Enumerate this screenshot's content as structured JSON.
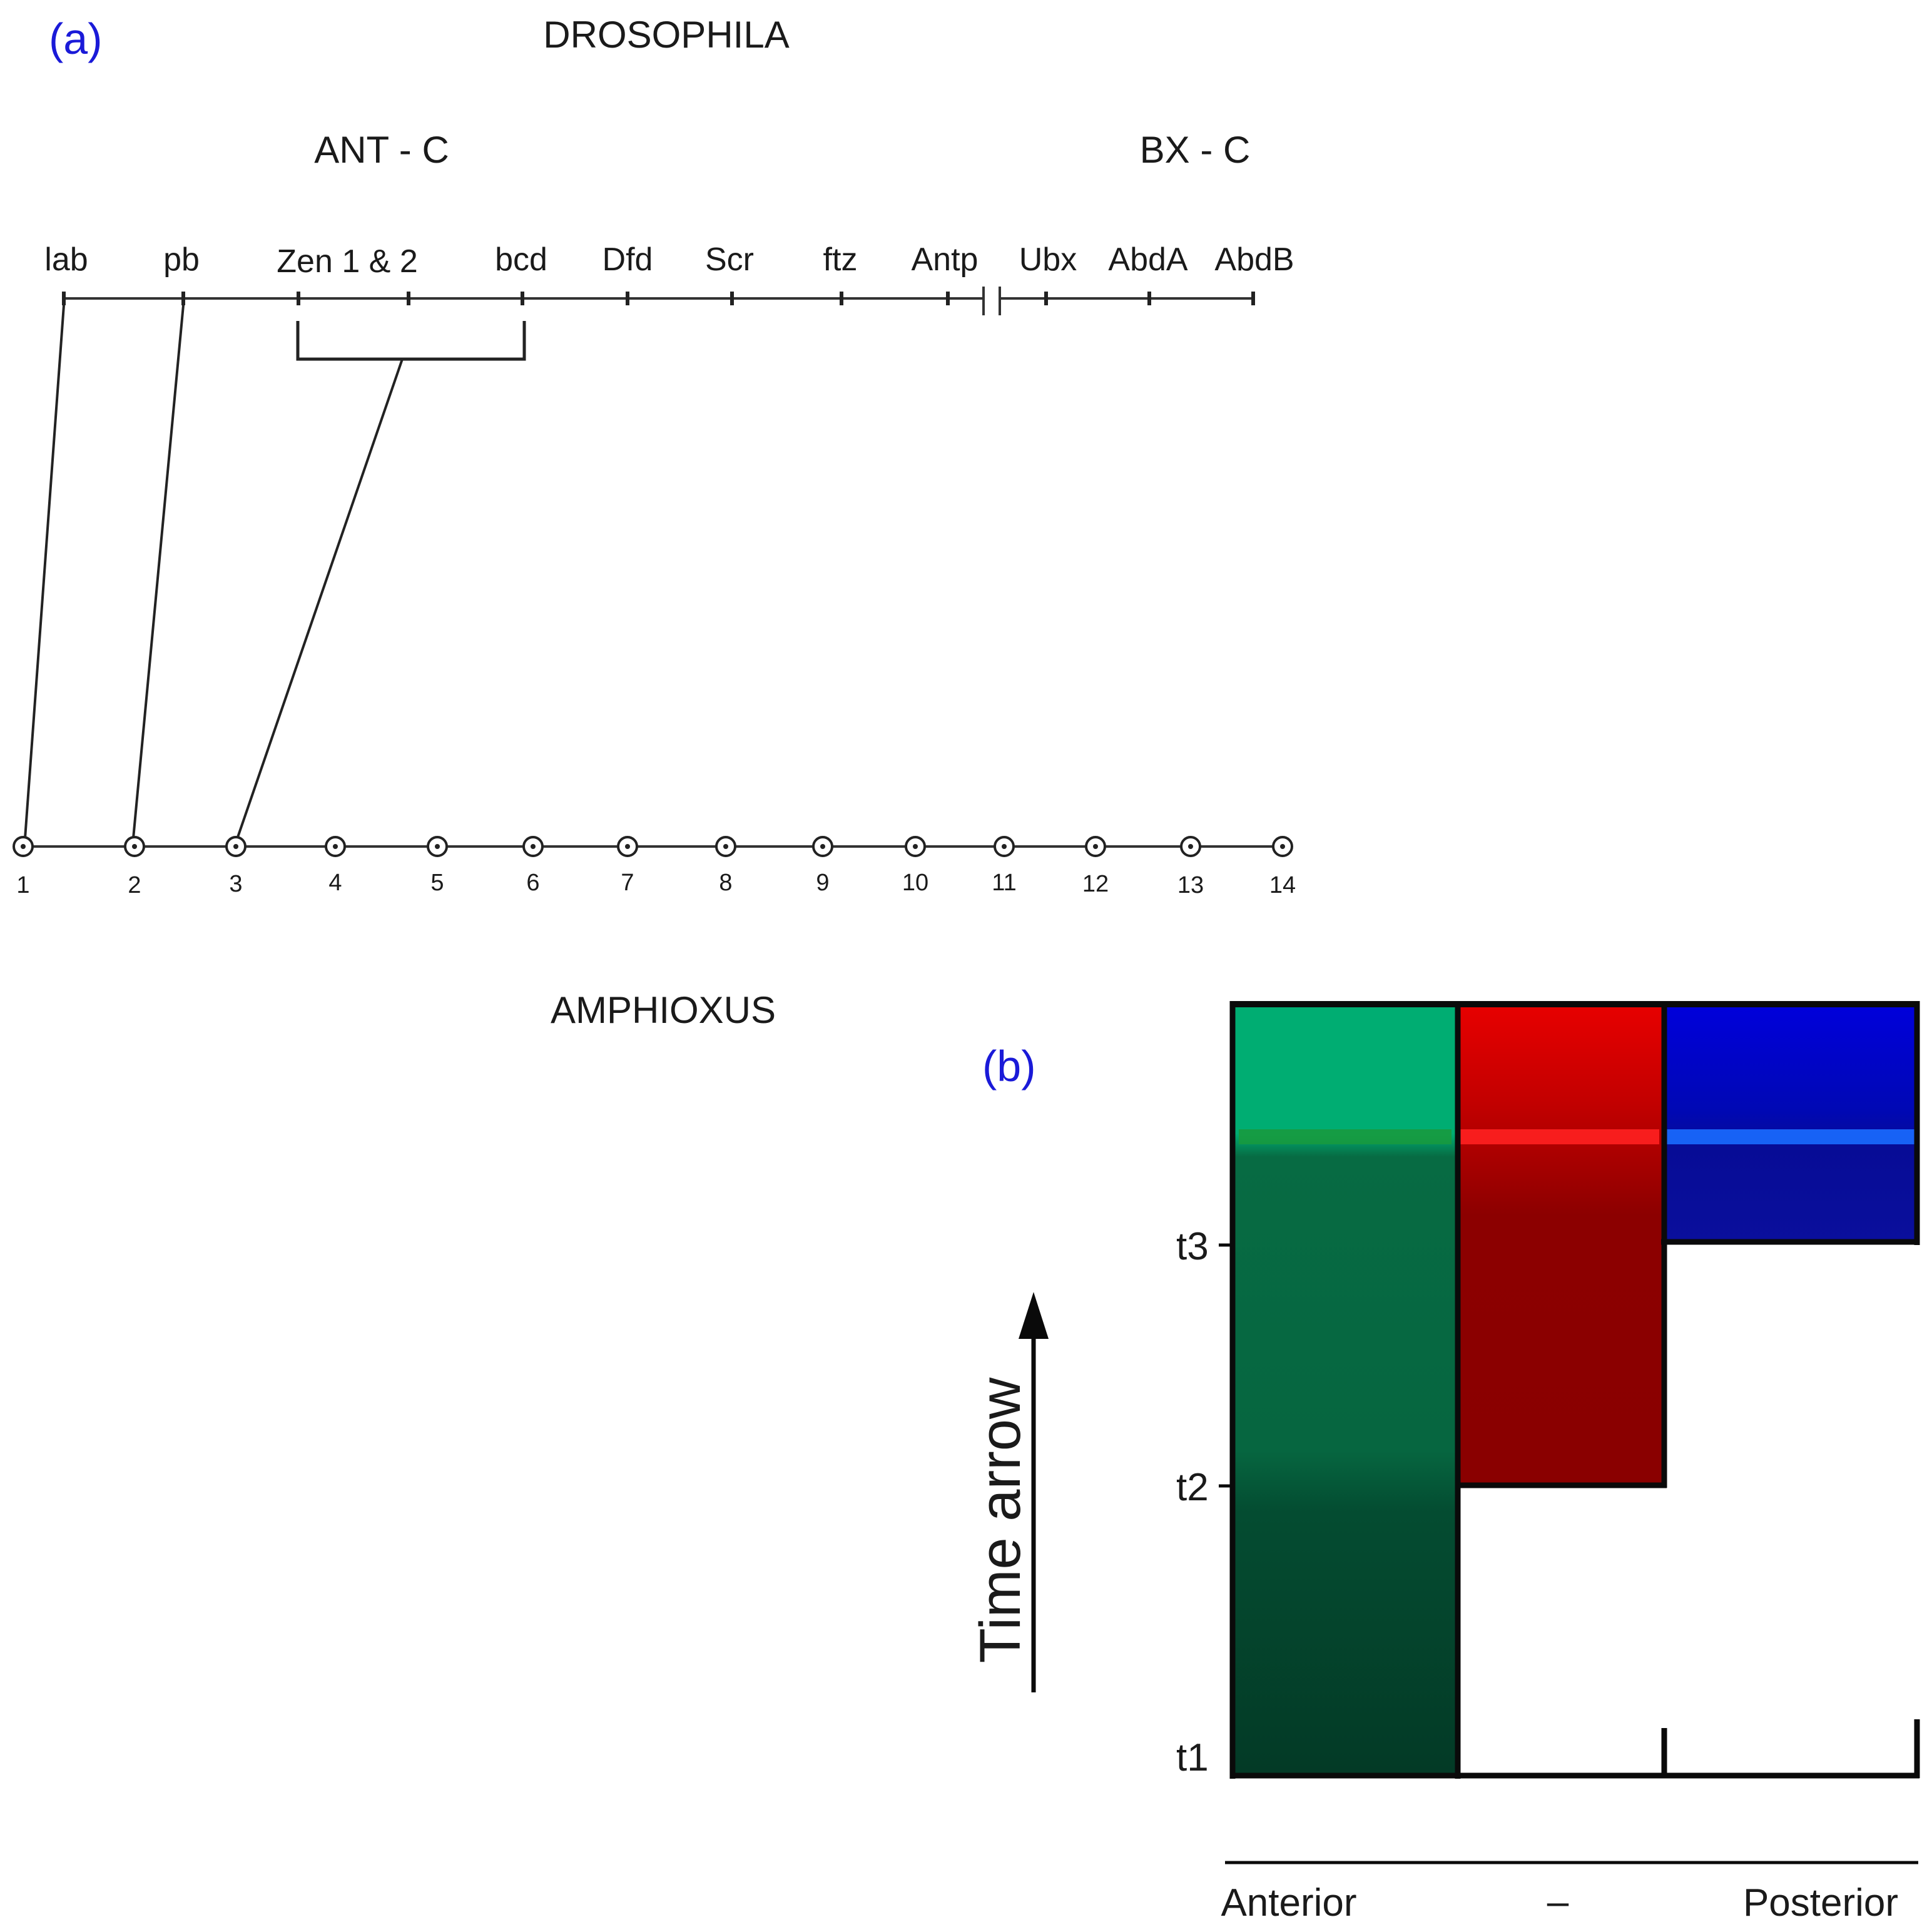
{
  "panel_a": {
    "panel_label": "(a)",
    "title_top": "DROSOPHILA",
    "title_bottom": "AMPHIOXUS",
    "complex_left": "ANT - C",
    "complex_right": "BX - C",
    "drosophila_genes": [
      "lab",
      "pb",
      "Zen 1 & 2",
      "bcd",
      "Dfd",
      "Scr",
      "ftz",
      "Antp",
      "Ubx",
      "AbdA",
      "AbdB"
    ],
    "amphioxus_genes": [
      "1",
      "2",
      "3",
      "4",
      "5",
      "6",
      "7",
      "8",
      "9",
      "10",
      "11",
      "12",
      "13",
      "14"
    ]
  },
  "panel_b": {
    "panel_label": "(b)",
    "time_axis_label": "Time arrow",
    "time_ticks": [
      "t1",
      "t2",
      "t3"
    ],
    "axis_labels": [
      "Anterior",
      "–",
      "Posterior"
    ],
    "colors": {
      "anterior": "#0a6b42",
      "anterior_top": "#00ad72",
      "middle": "#8c0000",
      "middle_top": "#e80000",
      "posterior": "#0a0fa8",
      "posterior_top": "#0000dc"
    }
  }
}
